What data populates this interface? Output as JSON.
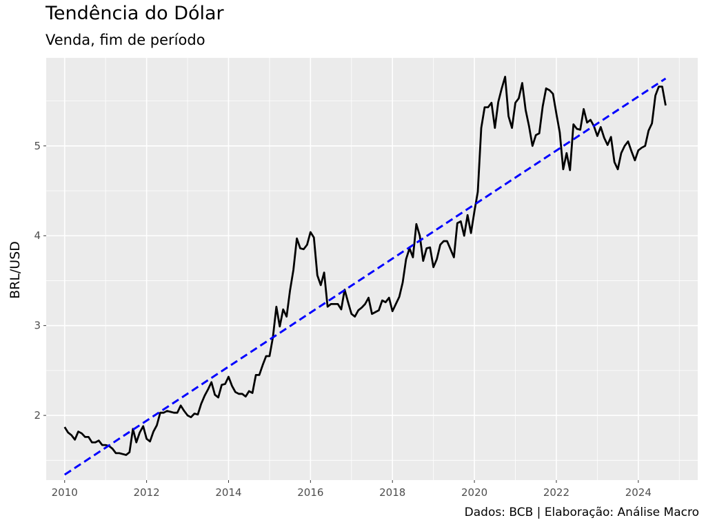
{
  "chart_data": {
    "type": "line",
    "title": "Tendência do Dólar",
    "subtitle": "Venda, fim de período",
    "caption": "Dados: BCB | Elaboração: Análise Macro",
    "xlabel": "",
    "ylabel": "BRL/USD",
    "xlim": [
      2009.55,
      2025.45
    ],
    "ylim": [
      1.28,
      5.98
    ],
    "x_ticks": [
      2010,
      2012,
      2014,
      2016,
      2018,
      2020,
      2022,
      2024
    ],
    "y_ticks": [
      2,
      3,
      4,
      5
    ],
    "grid": true,
    "background": "#ebebeb",
    "series": [
      {
        "style": "solid",
        "color": "#000000",
        "points": [
          [
            2010.0,
            1.87
          ],
          [
            2010.083,
            1.81
          ],
          [
            2010.167,
            1.78
          ],
          [
            2010.25,
            1.73
          ],
          [
            2010.333,
            1.82
          ],
          [
            2010.417,
            1.8
          ],
          [
            2010.5,
            1.76
          ],
          [
            2010.583,
            1.76
          ],
          [
            2010.667,
            1.7
          ],
          [
            2010.75,
            1.7
          ],
          [
            2010.833,
            1.72
          ],
          [
            2010.917,
            1.67
          ],
          [
            2011.0,
            1.67
          ],
          [
            2011.083,
            1.66
          ],
          [
            2011.167,
            1.63
          ],
          [
            2011.25,
            1.58
          ],
          [
            2011.333,
            1.58
          ],
          [
            2011.417,
            1.57
          ],
          [
            2011.5,
            1.56
          ],
          [
            2011.583,
            1.59
          ],
          [
            2011.667,
            1.85
          ],
          [
            2011.75,
            1.7
          ],
          [
            2011.833,
            1.81
          ],
          [
            2011.917,
            1.88
          ],
          [
            2012.0,
            1.74
          ],
          [
            2012.083,
            1.71
          ],
          [
            2012.167,
            1.82
          ],
          [
            2012.25,
            1.89
          ],
          [
            2012.333,
            2.03
          ],
          [
            2012.417,
            2.03
          ],
          [
            2012.5,
            2.05
          ],
          [
            2012.583,
            2.04
          ],
          [
            2012.667,
            2.03
          ],
          [
            2012.75,
            2.03
          ],
          [
            2012.833,
            2.11
          ],
          [
            2012.917,
            2.05
          ],
          [
            2013.0,
            2.0
          ],
          [
            2013.083,
            1.98
          ],
          [
            2013.167,
            2.02
          ],
          [
            2013.25,
            2.01
          ],
          [
            2013.333,
            2.13
          ],
          [
            2013.417,
            2.22
          ],
          [
            2013.5,
            2.29
          ],
          [
            2013.583,
            2.37
          ],
          [
            2013.667,
            2.23
          ],
          [
            2013.75,
            2.2
          ],
          [
            2013.833,
            2.34
          ],
          [
            2013.917,
            2.35
          ],
          [
            2014.0,
            2.43
          ],
          [
            2014.083,
            2.33
          ],
          [
            2014.167,
            2.26
          ],
          [
            2014.25,
            2.24
          ],
          [
            2014.333,
            2.24
          ],
          [
            2014.417,
            2.21
          ],
          [
            2014.5,
            2.27
          ],
          [
            2014.583,
            2.25
          ],
          [
            2014.667,
            2.45
          ],
          [
            2014.75,
            2.45
          ],
          [
            2014.833,
            2.56
          ],
          [
            2014.917,
            2.66
          ],
          [
            2015.0,
            2.66
          ],
          [
            2015.083,
            2.87
          ],
          [
            2015.167,
            3.21
          ],
          [
            2015.25,
            2.99
          ],
          [
            2015.333,
            3.18
          ],
          [
            2015.417,
            3.1
          ],
          [
            2015.5,
            3.39
          ],
          [
            2015.583,
            3.62
          ],
          [
            2015.667,
            3.97
          ],
          [
            2015.75,
            3.86
          ],
          [
            2015.833,
            3.85
          ],
          [
            2015.917,
            3.9
          ],
          [
            2016.0,
            4.04
          ],
          [
            2016.083,
            3.98
          ],
          [
            2016.167,
            3.56
          ],
          [
            2016.25,
            3.45
          ],
          [
            2016.333,
            3.59
          ],
          [
            2016.417,
            3.21
          ],
          [
            2016.5,
            3.24
          ],
          [
            2016.583,
            3.24
          ],
          [
            2016.667,
            3.24
          ],
          [
            2016.75,
            3.18
          ],
          [
            2016.833,
            3.4
          ],
          [
            2016.917,
            3.26
          ],
          [
            2017.0,
            3.13
          ],
          [
            2017.083,
            3.1
          ],
          [
            2017.167,
            3.17
          ],
          [
            2017.25,
            3.2
          ],
          [
            2017.333,
            3.24
          ],
          [
            2017.417,
            3.31
          ],
          [
            2017.5,
            3.13
          ],
          [
            2017.583,
            3.15
          ],
          [
            2017.667,
            3.17
          ],
          [
            2017.75,
            3.28
          ],
          [
            2017.833,
            3.26
          ],
          [
            2017.917,
            3.31
          ],
          [
            2018.0,
            3.16
          ],
          [
            2018.083,
            3.24
          ],
          [
            2018.167,
            3.32
          ],
          [
            2018.25,
            3.48
          ],
          [
            2018.333,
            3.74
          ],
          [
            2018.417,
            3.86
          ],
          [
            2018.5,
            3.76
          ],
          [
            2018.583,
            4.13
          ],
          [
            2018.667,
            4.0
          ],
          [
            2018.75,
            3.72
          ],
          [
            2018.833,
            3.86
          ],
          [
            2018.917,
            3.87
          ],
          [
            2019.0,
            3.65
          ],
          [
            2019.083,
            3.74
          ],
          [
            2019.167,
            3.9
          ],
          [
            2019.25,
            3.94
          ],
          [
            2019.333,
            3.94
          ],
          [
            2019.417,
            3.85
          ],
          [
            2019.5,
            3.76
          ],
          [
            2019.583,
            4.14
          ],
          [
            2019.667,
            4.16
          ],
          [
            2019.75,
            4.0
          ],
          [
            2019.833,
            4.23
          ],
          [
            2019.917,
            4.03
          ],
          [
            2020.0,
            4.27
          ],
          [
            2020.083,
            4.49
          ],
          [
            2020.167,
            5.2
          ],
          [
            2020.25,
            5.43
          ],
          [
            2020.333,
            5.43
          ],
          [
            2020.417,
            5.48
          ],
          [
            2020.5,
            5.2
          ],
          [
            2020.583,
            5.49
          ],
          [
            2020.667,
            5.64
          ],
          [
            2020.75,
            5.77
          ],
          [
            2020.833,
            5.33
          ],
          [
            2020.917,
            5.2
          ],
          [
            2021.0,
            5.48
          ],
          [
            2021.083,
            5.53
          ],
          [
            2021.167,
            5.7
          ],
          [
            2021.25,
            5.4
          ],
          [
            2021.333,
            5.22
          ],
          [
            2021.417,
            5.0
          ],
          [
            2021.5,
            5.12
          ],
          [
            2021.583,
            5.14
          ],
          [
            2021.667,
            5.44
          ],
          [
            2021.75,
            5.64
          ],
          [
            2021.833,
            5.62
          ],
          [
            2021.917,
            5.58
          ],
          [
            2022.0,
            5.36
          ],
          [
            2022.083,
            5.15
          ],
          [
            2022.167,
            4.74
          ],
          [
            2022.25,
            4.92
          ],
          [
            2022.333,
            4.73
          ],
          [
            2022.417,
            5.24
          ],
          [
            2022.5,
            5.19
          ],
          [
            2022.583,
            5.18
          ],
          [
            2022.667,
            5.41
          ],
          [
            2022.75,
            5.26
          ],
          [
            2022.833,
            5.29
          ],
          [
            2022.917,
            5.22
          ],
          [
            2023.0,
            5.11
          ],
          [
            2023.083,
            5.21
          ],
          [
            2023.167,
            5.09
          ],
          [
            2023.25,
            5.01
          ],
          [
            2023.333,
            5.1
          ],
          [
            2023.417,
            4.82
          ],
          [
            2023.5,
            4.74
          ],
          [
            2023.583,
            4.92
          ],
          [
            2023.667,
            5.0
          ],
          [
            2023.75,
            5.05
          ],
          [
            2023.833,
            4.94
          ],
          [
            2023.917,
            4.84
          ],
          [
            2024.0,
            4.95
          ],
          [
            2024.083,
            4.98
          ],
          [
            2024.167,
            5.0
          ],
          [
            2024.25,
            5.17
          ],
          [
            2024.333,
            5.25
          ],
          [
            2024.417,
            5.56
          ],
          [
            2024.5,
            5.66
          ],
          [
            2024.583,
            5.66
          ],
          [
            2024.667,
            5.45
          ]
        ]
      },
      {
        "style": "dashed",
        "color": "#0000ff",
        "points": [
          [
            2010.0,
            1.34
          ],
          [
            2024.667,
            5.75
          ]
        ]
      }
    ]
  }
}
